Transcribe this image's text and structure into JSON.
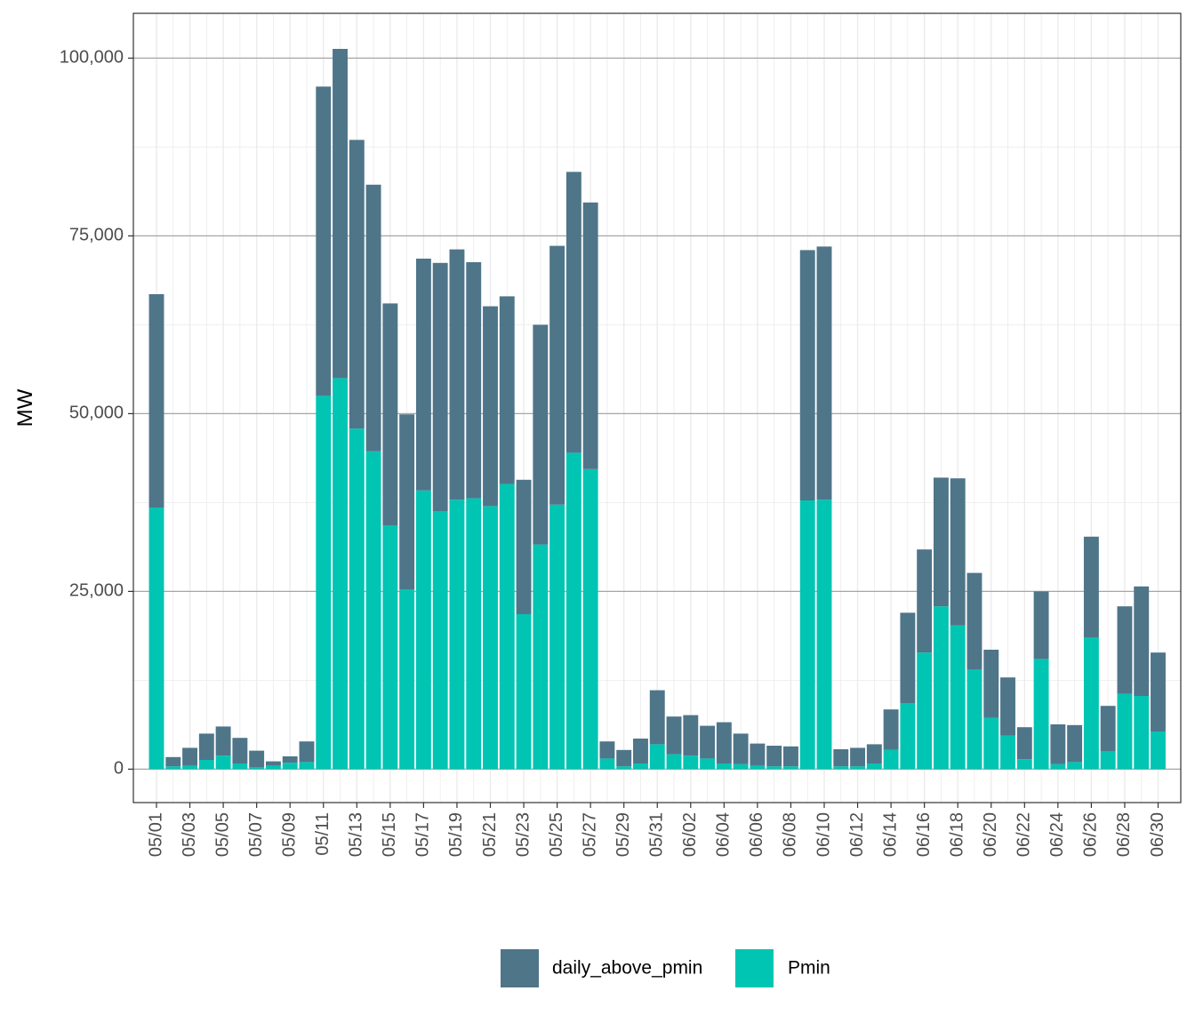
{
  "chart_data": {
    "type": "bar",
    "stacked": true,
    "title": "",
    "xlabel": "",
    "ylabel": "MW",
    "ylim": [
      -4700,
      106300
    ],
    "y_ticks": [
      0,
      25000,
      50000,
      75000,
      100000
    ],
    "y_tick_labels": [
      "0",
      "25,000",
      "50,000",
      "75,000",
      "100,000"
    ],
    "grid": true,
    "legend_position": "bottom",
    "categories": [
      "05/01",
      "05/02",
      "05/03",
      "05/04",
      "05/05",
      "05/06",
      "05/07",
      "05/08",
      "05/09",
      "05/10",
      "05/11",
      "05/12",
      "05/13",
      "05/14",
      "05/15",
      "05/16",
      "05/17",
      "05/18",
      "05/19",
      "05/20",
      "05/21",
      "05/22",
      "05/23",
      "05/24",
      "05/25",
      "05/26",
      "05/27",
      "05/28",
      "05/29",
      "05/30",
      "05/31",
      "06/01",
      "06/02",
      "06/03",
      "06/04",
      "06/05",
      "06/06",
      "06/07",
      "06/08",
      "06/09",
      "06/10",
      "06/11",
      "06/12",
      "06/13",
      "06/14",
      "06/15",
      "06/16",
      "06/17",
      "06/18",
      "06/19",
      "06/20",
      "06/21",
      "06/22",
      "06/23",
      "06/24",
      "06/25",
      "06/26",
      "06/27",
      "06/28",
      "06/29",
      "06/30"
    ],
    "x_tick_labels": [
      "05/01",
      "05/03",
      "05/05",
      "05/07",
      "05/09",
      "05/11",
      "05/13",
      "05/15",
      "05/17",
      "05/19",
      "05/21",
      "05/23",
      "05/25",
      "05/27",
      "05/29",
      "05/31",
      "06/02",
      "06/04",
      "06/06",
      "06/08",
      "06/10",
      "06/12",
      "06/14",
      "06/16",
      "06/18",
      "06/20",
      "06/22",
      "06/24",
      "06/26",
      "06/28",
      "06/30"
    ],
    "series": [
      {
        "name": "Pmin",
        "color": "#00C5B2",
        "values": [
          36800,
          400,
          500,
          1300,
          1900,
          800,
          300,
          500,
          900,
          1000,
          52500,
          55000,
          47900,
          44700,
          34300,
          25300,
          39200,
          36300,
          37900,
          38100,
          37000,
          40100,
          21800,
          31600,
          37200,
          44500,
          42200,
          1500,
          400,
          800,
          3500,
          2100,
          1900,
          1500,
          800,
          700,
          500,
          400,
          400,
          37800,
          37900,
          400,
          400,
          800,
          2700,
          9300,
          16400,
          22900,
          20200,
          14000,
          7200,
          4700,
          1400,
          15500,
          700,
          1000,
          18500,
          2500,
          10600,
          10300,
          5300
        ]
      },
      {
        "name": "daily_above_pmin",
        "color": "#4F7589",
        "values": [
          30000,
          1300,
          2500,
          3700,
          4100,
          3600,
          2300,
          600,
          900,
          2900,
          43500,
          46300,
          40600,
          37500,
          31200,
          24600,
          32600,
          34900,
          35200,
          33200,
          28100,
          26400,
          18900,
          30900,
          36400,
          39500,
          37500,
          2400,
          2300,
          3500,
          7600,
          5300,
          5700,
          4600,
          5800,
          4300,
          3100,
          2900,
          2800,
          35200,
          35600,
          2400,
          2600,
          2700,
          5700,
          12700,
          14500,
          18100,
          20700,
          13600,
          9600,
          8200,
          4500,
          9500,
          5600,
          5200,
          14200,
          6400,
          12300,
          15400,
          11100
        ]
      }
    ]
  }
}
